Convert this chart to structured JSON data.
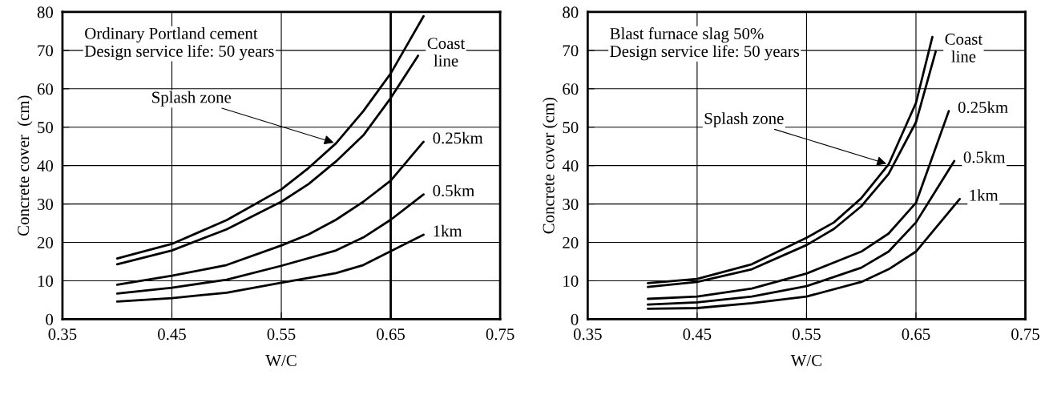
{
  "chart_data": [
    {
      "type": "line",
      "xlabel": "W/C",
      "ylabel": "Concrete cover  (cm)",
      "xlim": [
        0.35,
        0.75
      ],
      "ylim": [
        0,
        80
      ],
      "xticks": [
        {
          "value": 0.35,
          "label": "0.35"
        },
        {
          "value": 0.45,
          "label": "0.45"
        },
        {
          "value": 0.55,
          "label": "0.55"
        },
        {
          "value": 0.65,
          "label": "0.65"
        },
        {
          "value": 0.75,
          "label": "0.75"
        }
      ],
      "yticks": [
        0,
        10,
        20,
        30,
        40,
        50,
        60,
        70,
        80
      ],
      "grid": true,
      "legend": false,
      "marker": "none",
      "line_style": "solid",
      "annotations": [
        "Ordinary Portland cement\nDesign service life: 50 years",
        {
          "text": "Splash zone",
          "x": 0.6,
          "y": 45.8
        }
      ],
      "ref_lines": [
        {
          "axis": "x",
          "value": 0.65,
          "color": "#000000"
        }
      ],
      "series": [
        {
          "color": "#000000",
          "x": [
            0.4,
            0.45,
            0.5,
            0.55,
            0.575,
            0.6,
            0.625,
            0.65,
            0.68
          ],
          "values": [
            15.8,
            19.6,
            25.8,
            33.8,
            39.4,
            45.8,
            54.2,
            64.0,
            78.9
          ]
        },
        {
          "name": "Coast\nline",
          "color": "#000000",
          "x": [
            0.4,
            0.45,
            0.5,
            0.55,
            0.575,
            0.6,
            0.625,
            0.65,
            0.675
          ],
          "values": [
            14.3,
            17.9,
            23.4,
            30.6,
            35.2,
            41.1,
            47.9,
            57.6,
            68.6
          ]
        },
        {
          "name": "0.25km",
          "color": "#000000",
          "x": [
            0.4,
            0.45,
            0.5,
            0.55,
            0.575,
            0.6,
            0.625,
            0.65,
            0.68
          ],
          "values": [
            9.0,
            11.3,
            14.1,
            19.2,
            22.1,
            25.9,
            30.6,
            36.1,
            46.2
          ]
        },
        {
          "name": "0.5km",
          "color": "#000000",
          "x": [
            0.4,
            0.45,
            0.5,
            0.55,
            0.6,
            0.625,
            0.65,
            0.68
          ],
          "values": [
            6.7,
            8.2,
            10.3,
            13.9,
            17.9,
            21.3,
            25.9,
            32.5
          ]
        },
        {
          "name": "1km",
          "color": "#000000",
          "x": [
            0.4,
            0.45,
            0.5,
            0.55,
            0.6,
            0.625,
            0.65,
            0.68
          ],
          "values": [
            4.6,
            5.5,
            6.9,
            9.5,
            12.0,
            14.1,
            17.7,
            22.0
          ]
        }
      ]
    },
    {
      "type": "line",
      "xlabel": "W/C",
      "ylabel": "Concrete cover (cm)",
      "xlim": [
        0.35,
        0.75
      ],
      "ylim": [
        0,
        80
      ],
      "xticks": [
        {
          "value": 0.35,
          "label": "0.35"
        },
        {
          "value": 0.45,
          "label": "0.45"
        },
        {
          "value": 0.55,
          "label": "0.55"
        },
        {
          "value": 0.65,
          "label": "0.65"
        },
        {
          "value": 0.75,
          "label": "0.75"
        }
      ],
      "yticks": [
        0,
        10,
        20,
        30,
        40,
        50,
        60,
        70,
        80
      ],
      "grid": true,
      "legend": false,
      "marker": "none",
      "line_style": "solid",
      "annotations": [
        "Blast furnace slag 50%\nDesign service life: 50 years",
        {
          "text": "Splash zone",
          "x": 0.625,
          "y": 40.3
        }
      ],
      "series": [
        {
          "color": "#000000",
          "x": [
            0.405,
            0.45,
            0.5,
            0.55,
            0.575,
            0.6,
            0.625,
            0.65,
            0.665
          ],
          "values": [
            9.4,
            10.5,
            14.3,
            21.2,
            25.2,
            31.5,
            40.3,
            56.3,
            73.5
          ]
        },
        {
          "name": "Coast\nline",
          "color": "#000000",
          "x": [
            0.405,
            0.45,
            0.5,
            0.55,
            0.575,
            0.6,
            0.625,
            0.65,
            0.668
          ],
          "values": [
            8.4,
            9.7,
            13.0,
            19.3,
            23.5,
            29.4,
            37.8,
            51.3,
            69.7
          ]
        },
        {
          "name": "0.25km",
          "color": "#000000",
          "x": [
            0.405,
            0.45,
            0.5,
            0.55,
            0.6,
            0.625,
            0.65,
            0.68
          ],
          "values": [
            5.3,
            5.9,
            8.0,
            11.9,
            17.6,
            22.3,
            30.3,
            54.2
          ]
        },
        {
          "name": "0.5km",
          "color": "#000000",
          "x": [
            0.405,
            0.45,
            0.5,
            0.55,
            0.6,
            0.625,
            0.65,
            0.685
          ],
          "values": [
            3.8,
            4.4,
            5.9,
            8.6,
            13.4,
            17.6,
            25.2,
            41.2
          ]
        },
        {
          "name": "1km",
          "color": "#000000",
          "x": [
            0.405,
            0.45,
            0.5,
            0.55,
            0.6,
            0.625,
            0.65,
            0.69
          ],
          "values": [
            2.7,
            2.9,
            4.2,
            5.9,
            9.7,
            13.0,
            17.6,
            31.3
          ]
        }
      ]
    }
  ]
}
